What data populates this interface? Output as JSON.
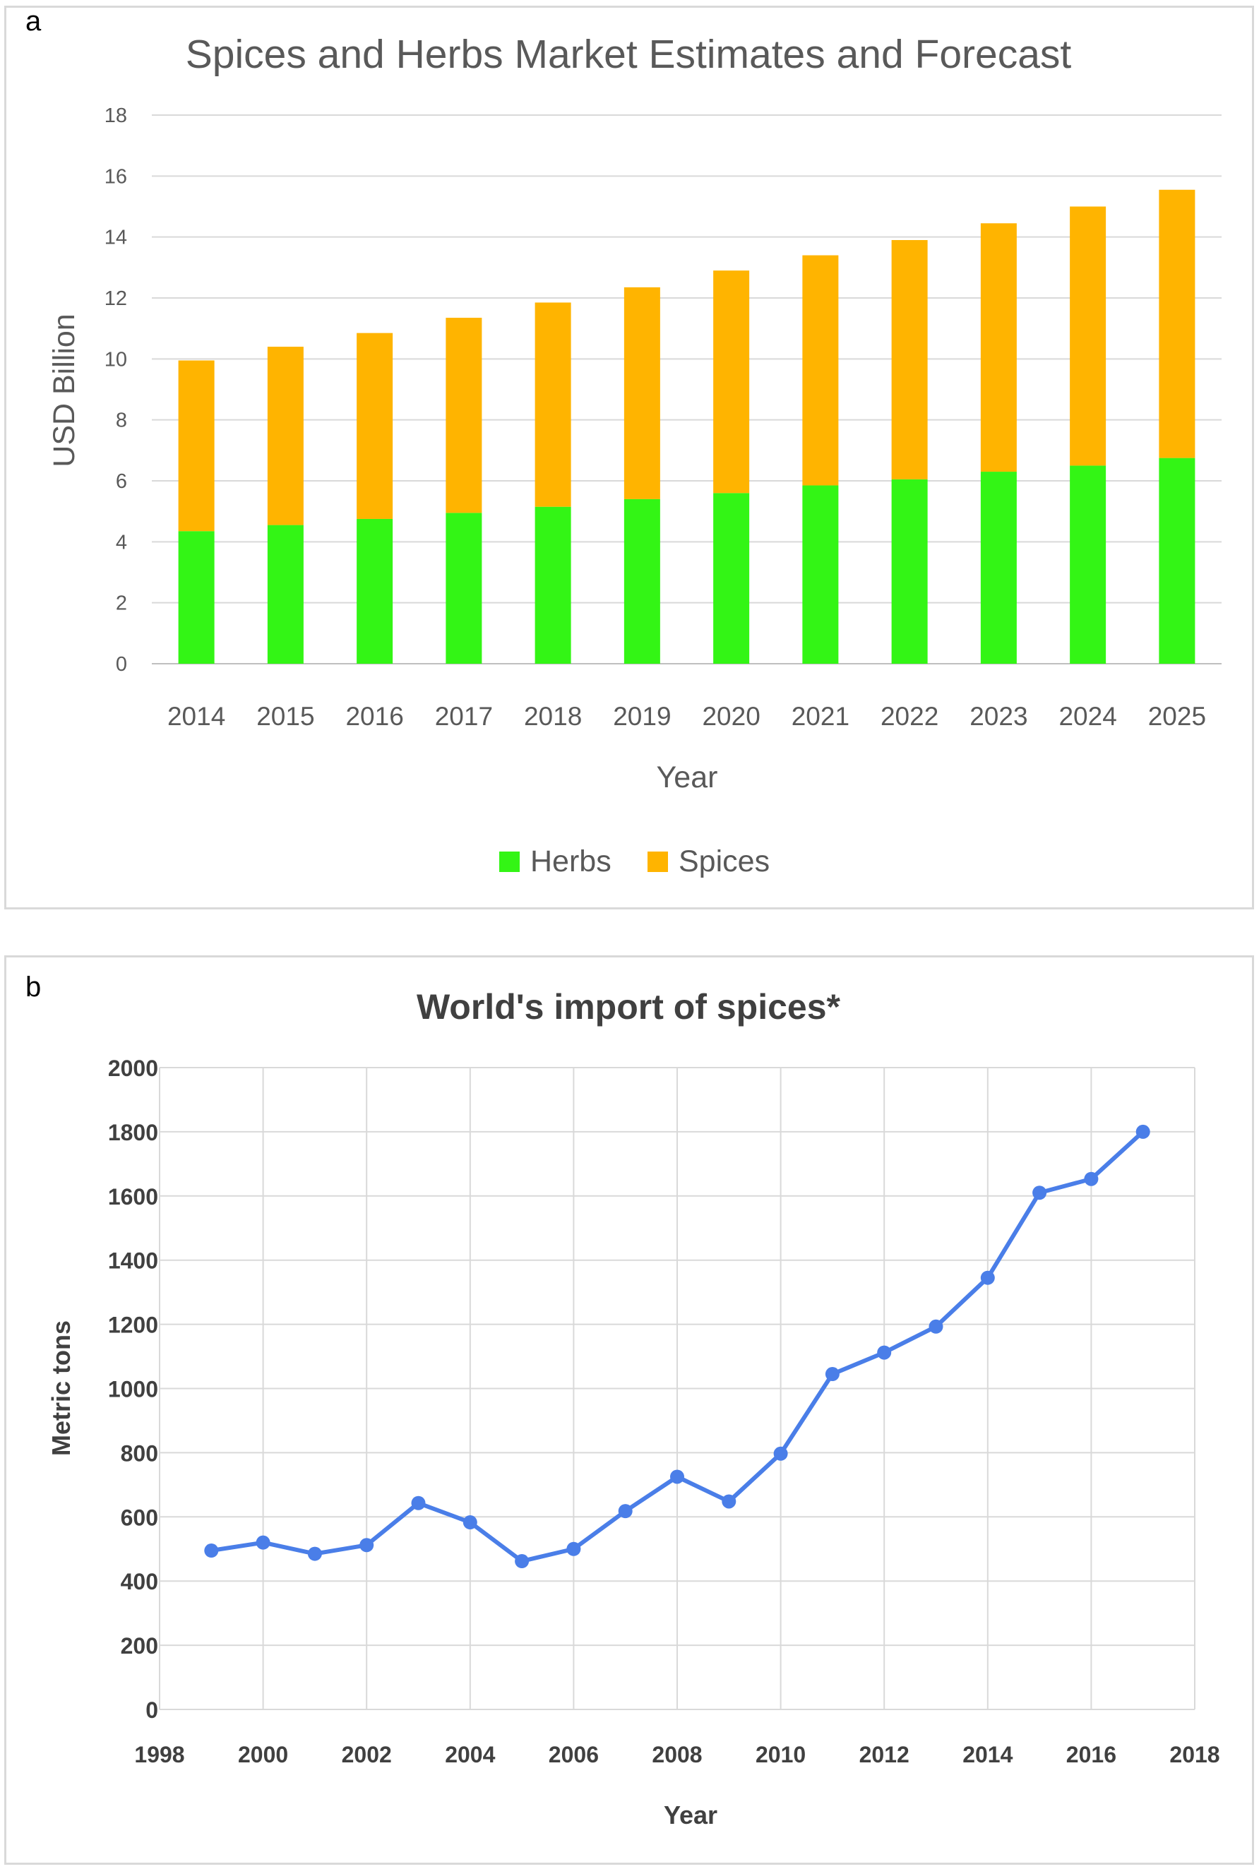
{
  "panels": {
    "a_label": "a",
    "b_label": "b"
  },
  "chart_data": [
    {
      "type": "bar",
      "stacked": true,
      "title": "Spices and Herbs Market Estimates and Forecast",
      "xlabel": "Year",
      "ylabel": "USD Billion",
      "ylim": [
        0,
        18
      ],
      "yticks": [
        0,
        2,
        4,
        6,
        8,
        10,
        12,
        14,
        16,
        18
      ],
      "grid": true,
      "legend_position": "bottom",
      "categories": [
        "2014",
        "2015",
        "2016",
        "2017",
        "2018",
        "2019",
        "2020",
        "2021",
        "2022",
        "2023",
        "2024",
        "2025"
      ],
      "series": [
        {
          "name": "Herbs",
          "color": "#33f515",
          "values": [
            4.35,
            4.55,
            4.75,
            4.95,
            5.15,
            5.4,
            5.6,
            5.85,
            6.05,
            6.3,
            6.5,
            6.75
          ]
        },
        {
          "name": "Spices",
          "color": "#ffb400",
          "values": [
            5.6,
            5.85,
            6.1,
            6.4,
            6.7,
            6.95,
            7.3,
            7.55,
            7.85,
            8.15,
            8.5,
            8.8
          ]
        }
      ]
    },
    {
      "type": "line",
      "title": "World's import of spices*",
      "xlabel": "Year",
      "ylabel": "Metric tons",
      "xlim": [
        1998,
        2018
      ],
      "ylim": [
        0,
        2000
      ],
      "xticks": [
        1998,
        2000,
        2002,
        2004,
        2006,
        2008,
        2010,
        2012,
        2014,
        2016,
        2018
      ],
      "yticks": [
        0,
        200,
        400,
        600,
        800,
        1000,
        1200,
        1400,
        1600,
        1800,
        2000
      ],
      "grid": true,
      "series": [
        {
          "color": "#4a7ee8",
          "x": [
            1999,
            2000,
            2001,
            2002,
            2003,
            2004,
            2005,
            2006,
            2007,
            2008,
            2009,
            2010,
            2011,
            2012,
            2013,
            2014,
            2015,
            2016,
            2017
          ],
          "y": [
            495,
            520,
            485,
            512,
            643,
            583,
            462,
            500,
            618,
            725,
            648,
            797,
            1045,
            1112,
            1193,
            1345,
            1610,
            1653,
            1800
          ]
        }
      ]
    }
  ]
}
